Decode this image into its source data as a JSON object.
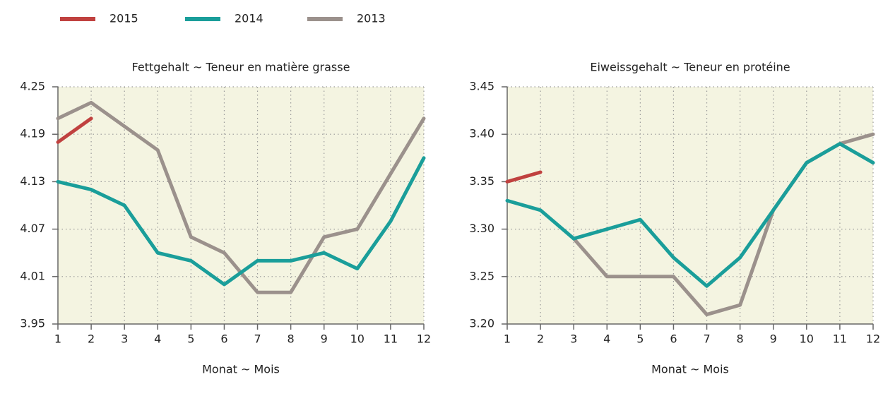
{
  "chart_data": [
    {
      "type": "line",
      "title": "Fettgehalt ~ Teneur en matière grasse",
      "x_label": "Monat ~ Mois",
      "x": [
        1,
        2,
        3,
        4,
        5,
        6,
        7,
        8,
        9,
        10,
        11,
        12
      ],
      "xlim": [
        1,
        12
      ],
      "xticks": [
        1,
        2,
        3,
        4,
        5,
        6,
        7,
        8,
        9,
        10,
        11,
        12
      ],
      "ylim": [
        3.95,
        4.25
      ],
      "yticks": [
        3.95,
        4.01,
        4.07,
        4.13,
        4.19,
        4.25
      ],
      "grid": true,
      "series": [
        {
          "name": "2013",
          "color": "#9b918c",
          "values": [
            4.21,
            4.23,
            4.2,
            4.17,
            4.06,
            4.04,
            3.99,
            3.99,
            4.06,
            4.07,
            4.14,
            4.21
          ]
        },
        {
          "name": "2014",
          "color": "#1a9e9a",
          "values": [
            4.13,
            4.12,
            4.1,
            4.04,
            4.03,
            4.0,
            4.03,
            4.03,
            4.04,
            4.02,
            4.08,
            4.16
          ]
        },
        {
          "name": "2015",
          "color": "#c0413f",
          "values": [
            4.18,
            4.21,
            null,
            null,
            null,
            null,
            null,
            null,
            null,
            null,
            null,
            null
          ]
        }
      ]
    },
    {
      "type": "line",
      "title": "Eiweissgehalt ~ Teneur en protéine",
      "x_label": "Monat ~ Mois",
      "x": [
        1,
        2,
        3,
        4,
        5,
        6,
        7,
        8,
        9,
        10,
        11,
        12
      ],
      "xlim": [
        1,
        12
      ],
      "xticks": [
        1,
        2,
        3,
        4,
        5,
        6,
        7,
        8,
        9,
        10,
        11,
        12
      ],
      "ylim": [
        3.2,
        3.45
      ],
      "yticks": [
        {
          "value": 3.2,
          "label": "3.20"
        },
        3.25,
        {
          "value": 3.3,
          "label": "3.30"
        },
        3.35,
        {
          "value": 3.4,
          "label": "3.40"
        },
        3.45
      ],
      "grid": true,
      "series": [
        {
          "color": "#9b918c",
          "values": [
            null,
            null,
            3.29,
            3.25,
            3.25,
            3.25,
            3.21,
            3.22,
            3.32,
            3.37,
            3.39,
            3.4
          ]
        },
        {
          "color": "#1a9e9a",
          "values": [
            3.33,
            3.32,
            3.29,
            3.3,
            3.31,
            3.27,
            3.24,
            3.27,
            3.32,
            3.37,
            3.39,
            3.37
          ]
        },
        {
          "color": "#c0413f",
          "values": [
            3.35,
            3.36,
            null,
            null,
            null,
            null,
            null,
            null,
            null,
            null,
            null,
            null
          ]
        }
      ]
    }
  ]
}
